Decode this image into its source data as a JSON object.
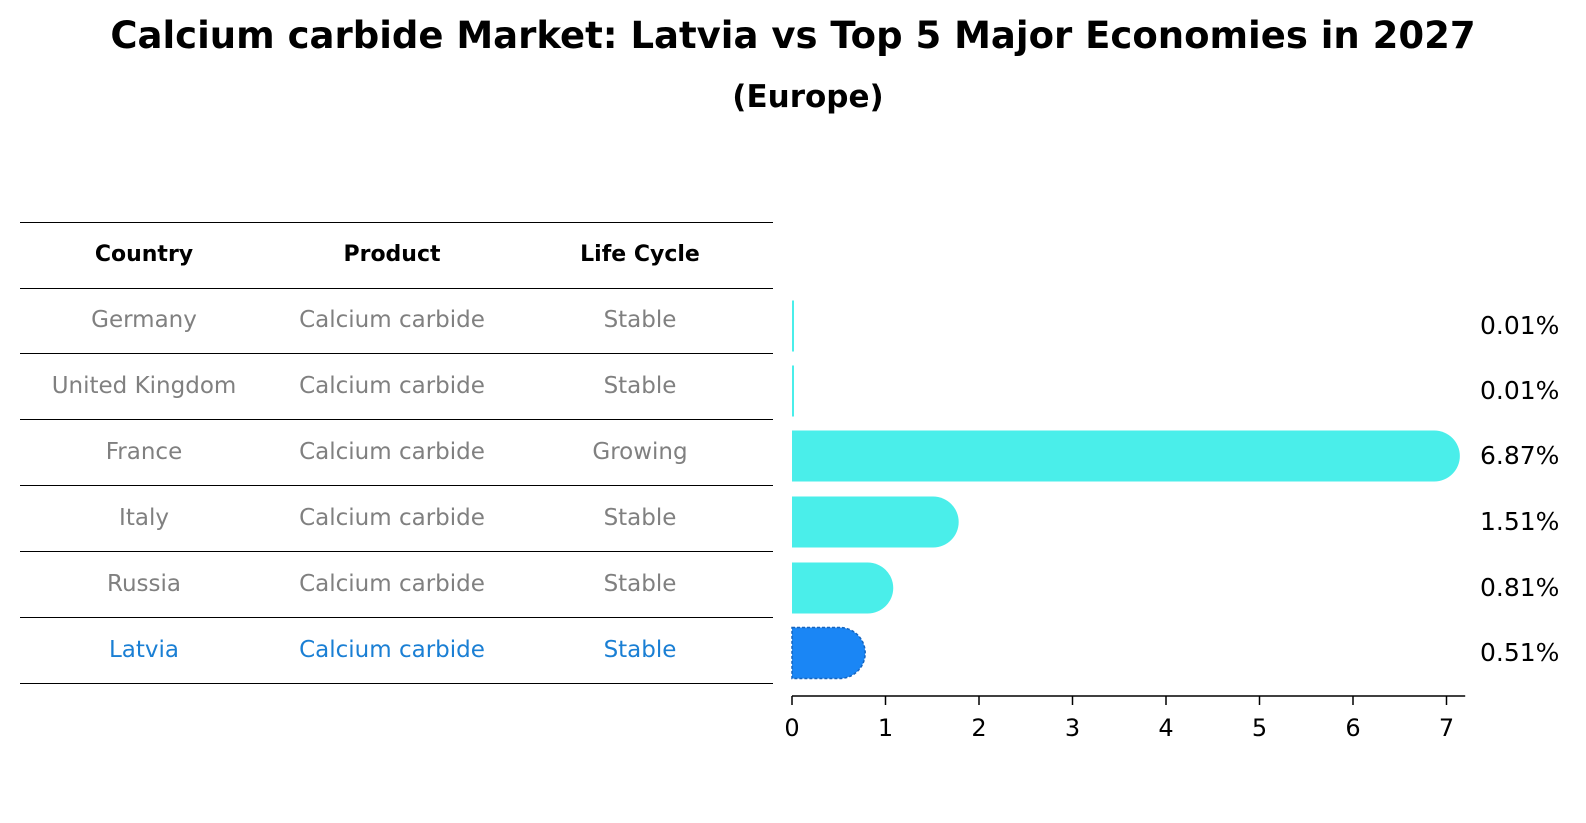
{
  "title": "Calcium carbide Market: Latvia vs Top 5 Major Economies in 2027",
  "subtitle": "(Europe)",
  "table": {
    "headers": [
      "Country",
      "Product",
      "Life Cycle"
    ],
    "rows": [
      {
        "country": "Germany",
        "product": "Calcium carbide",
        "life_cycle": "Stable"
      },
      {
        "country": "United Kingdom",
        "product": "Calcium carbide",
        "life_cycle": "Stable"
      },
      {
        "country": "France",
        "product": "Calcium carbide",
        "life_cycle": "Growing"
      },
      {
        "country": "Italy",
        "product": "Calcium carbide",
        "life_cycle": "Stable"
      },
      {
        "country": "Russia",
        "product": "Calcium carbide",
        "life_cycle": "Stable"
      },
      {
        "country": "Latvia",
        "product": "Calcium carbide",
        "life_cycle": "Stable"
      }
    ]
  },
  "colors": {
    "bar": "#4aeeea",
    "highlight": "#1a86f5",
    "highlight_text": "#1a7fd4",
    "muted_text": "#808080"
  },
  "chart_data": {
    "type": "bar",
    "orientation": "horizontal",
    "categories": [
      "Germany",
      "United Kingdom",
      "France",
      "Italy",
      "Russia",
      "Latvia"
    ],
    "values": [
      0.01,
      0.01,
      6.87,
      1.51,
      0.81,
      0.51
    ],
    "value_labels": [
      "0.01%",
      "0.01%",
      "6.87%",
      "1.51%",
      "0.81%",
      "0.51%"
    ],
    "highlight": "Latvia",
    "xlim": [
      0,
      7.2
    ],
    "xticks": [
      0,
      1,
      2,
      3,
      4,
      5,
      6,
      7
    ]
  }
}
